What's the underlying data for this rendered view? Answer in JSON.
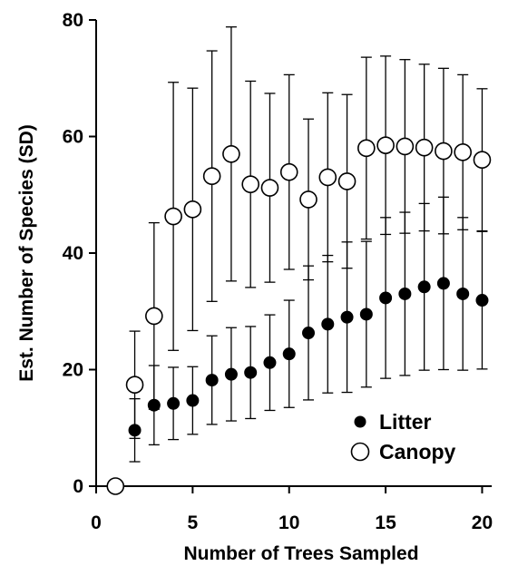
{
  "chart_data": {
    "type": "scatter",
    "xlabel": "Number of Trees Sampled",
    "ylabel": "Est. Number of Species (SD)",
    "xlim": [
      0,
      21.2
    ],
    "ylim": [
      0,
      80
    ],
    "xticks": [
      0,
      5,
      10,
      15,
      20
    ],
    "yticks": [
      0,
      20,
      40,
      60,
      80
    ],
    "grid": false,
    "legend_position": "bottom-right",
    "series": [
      {
        "name": "Litter",
        "marker": "filled-circle",
        "color": "#000000",
        "x": [
          2,
          3,
          4,
          5,
          6,
          7,
          8,
          9,
          10,
          11,
          12,
          13,
          14,
          15,
          16,
          17,
          18,
          19,
          20
        ],
        "y": [
          9.6,
          13.9,
          14.2,
          14.7,
          18.2,
          19.2,
          19.5,
          21.2,
          22.7,
          26.3,
          27.8,
          29.0,
          29.5,
          32.3,
          33.0,
          34.2,
          34.8,
          33.0,
          31.9
        ],
        "sd": [
          5.4,
          6.8,
          6.2,
          5.8,
          7.6,
          8.0,
          7.9,
          8.2,
          9.2,
          11.5,
          11.8,
          12.9,
          12.5,
          13.8,
          14.0,
          14.3,
          14.8,
          13.1,
          11.8
        ]
      },
      {
        "name": "Canopy",
        "marker": "open-circle",
        "color": "#000000",
        "x": [
          1,
          2,
          3,
          4,
          5,
          6,
          7,
          8,
          9,
          10,
          11,
          12,
          13,
          14,
          15,
          16,
          17,
          18,
          19,
          20
        ],
        "y": [
          0.0,
          17.4,
          29.2,
          46.3,
          47.5,
          53.2,
          57.0,
          51.8,
          51.2,
          53.9,
          49.2,
          53.0,
          52.3,
          58.0,
          58.5,
          58.3,
          58.1,
          57.5,
          57.3,
          56.0
        ],
        "sd": [
          0.0,
          9.2,
          16.0,
          23.0,
          20.8,
          21.5,
          21.8,
          17.7,
          16.2,
          16.7,
          13.8,
          14.5,
          14.9,
          15.6,
          15.3,
          14.9,
          14.3,
          14.2,
          13.3,
          12.2
        ]
      }
    ]
  }
}
